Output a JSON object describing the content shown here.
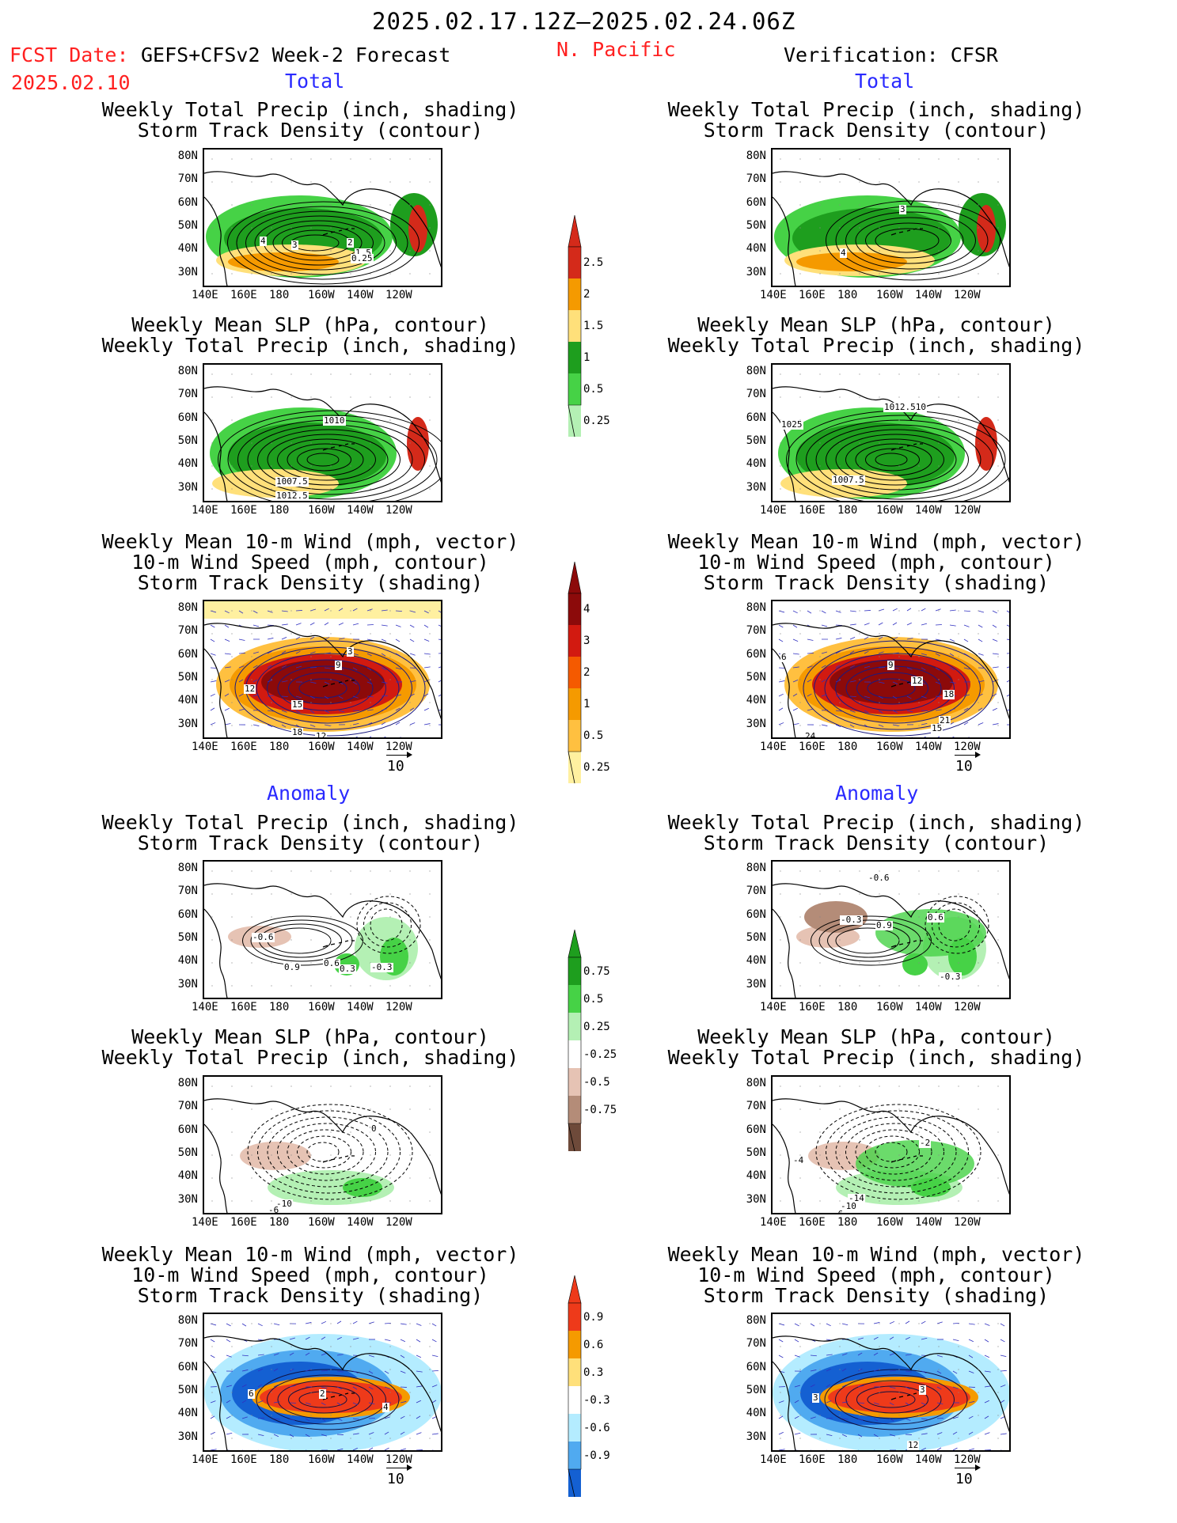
{
  "header": {
    "period": "2025.02.17.12Z–2025.02.24.06Z",
    "fcst_label": "FCST Date:",
    "fcst_model": "GEFS+CFSv2 Week-2 Forecast",
    "fcst_date": "2025.02.10",
    "region": "N. Pacific",
    "verification": "Verification: CFSR"
  },
  "sections": {
    "total": "Total",
    "anomaly": "Anomaly"
  },
  "panel_titles": {
    "precip_storm": [
      "Weekly Total Precip (inch, shading)",
      "Storm Track Density (contour)"
    ],
    "slp_precip": [
      "Weekly Mean SLP (hPa, contour)",
      "Weekly Total Precip (inch, shading)"
    ],
    "wind_storm": [
      "Weekly Mean 10-m Wind (mph, vector)",
      "10-m Wind Speed (mph, contour)",
      "Storm Track Density (shading)"
    ]
  },
  "axes": {
    "lat_labels": [
      "80N",
      "70N",
      "60N",
      "50N",
      "40N",
      "30N"
    ],
    "lon_labels": [
      "140E",
      "160E",
      "180",
      "160W",
      "140W",
      "120W"
    ]
  },
  "wind_reference": "10",
  "colorbars": {
    "precip_total": {
      "labels": [
        "2.5",
        "2",
        "1.5",
        "1",
        "0.5",
        "0.25"
      ],
      "colors": [
        "#d42a1a",
        "#f59a00",
        "#ffe07a",
        "#1e9e1e",
        "#46d246",
        "#b4f0b4"
      ]
    },
    "storm_total": {
      "labels": [
        "4",
        "3",
        "2",
        "1",
        "0.5",
        "0.25"
      ],
      "colors": [
        "#8c0a0a",
        "#d21a10",
        "#f55a00",
        "#f59a00",
        "#ffc040",
        "#fff0a0"
      ]
    },
    "precip_anom": {
      "labels": [
        "0.75",
        "0.5",
        "0.25",
        "-0.25",
        "-0.5",
        "-0.75"
      ],
      "colors": [
        "#1e9e1e",
        "#46d246",
        "#b4f0b4",
        "#ffffff",
        "#e6c3b4",
        "#b48c78",
        "#6e4a3a"
      ]
    },
    "storm_anom": {
      "labels": [
        "0.9",
        "0.6",
        "0.3",
        "-0.3",
        "-0.6",
        "-0.9"
      ],
      "colors": [
        "#ee3a1a",
        "#f59a00",
        "#ffe07a",
        "#ffffff",
        "#b4ecff",
        "#50aaf0",
        "#1460d2"
      ]
    }
  },
  "contour_labels": {
    "f_total_precip": [
      "4",
      "3",
      "2",
      "1.5",
      "0.25"
    ],
    "v_total_precip": [
      "3",
      "4"
    ],
    "f_total_slp": [
      "1010",
      "1007.5",
      "1012.5"
    ],
    "v_total_slp": [
      "1012.510",
      "1025",
      "1007.5"
    ],
    "f_total_wind": [
      "3",
      "9",
      "12",
      "15",
      "18",
      "12"
    ],
    "v_total_wind": [
      "6",
      "9",
      "12",
      "18",
      "21",
      "15",
      "24"
    ],
    "f_anom_precip": [
      "-0.6",
      "0.9",
      "0.6",
      "0.3",
      "-0.3"
    ],
    "v_anom_precip": [
      "-0.6",
      "-0.3",
      "0.9",
      "0.6",
      "-0.3"
    ],
    "f_anom_slp": [
      "0",
      "-10",
      "-6"
    ],
    "v_anom_slp": [
      "-2",
      "-4",
      "-14",
      "-10",
      "-6"
    ],
    "f_anom_wind": [
      "6",
      "2",
      "4"
    ],
    "v_anom_wind": [
      "3",
      "3",
      "12"
    ]
  }
}
